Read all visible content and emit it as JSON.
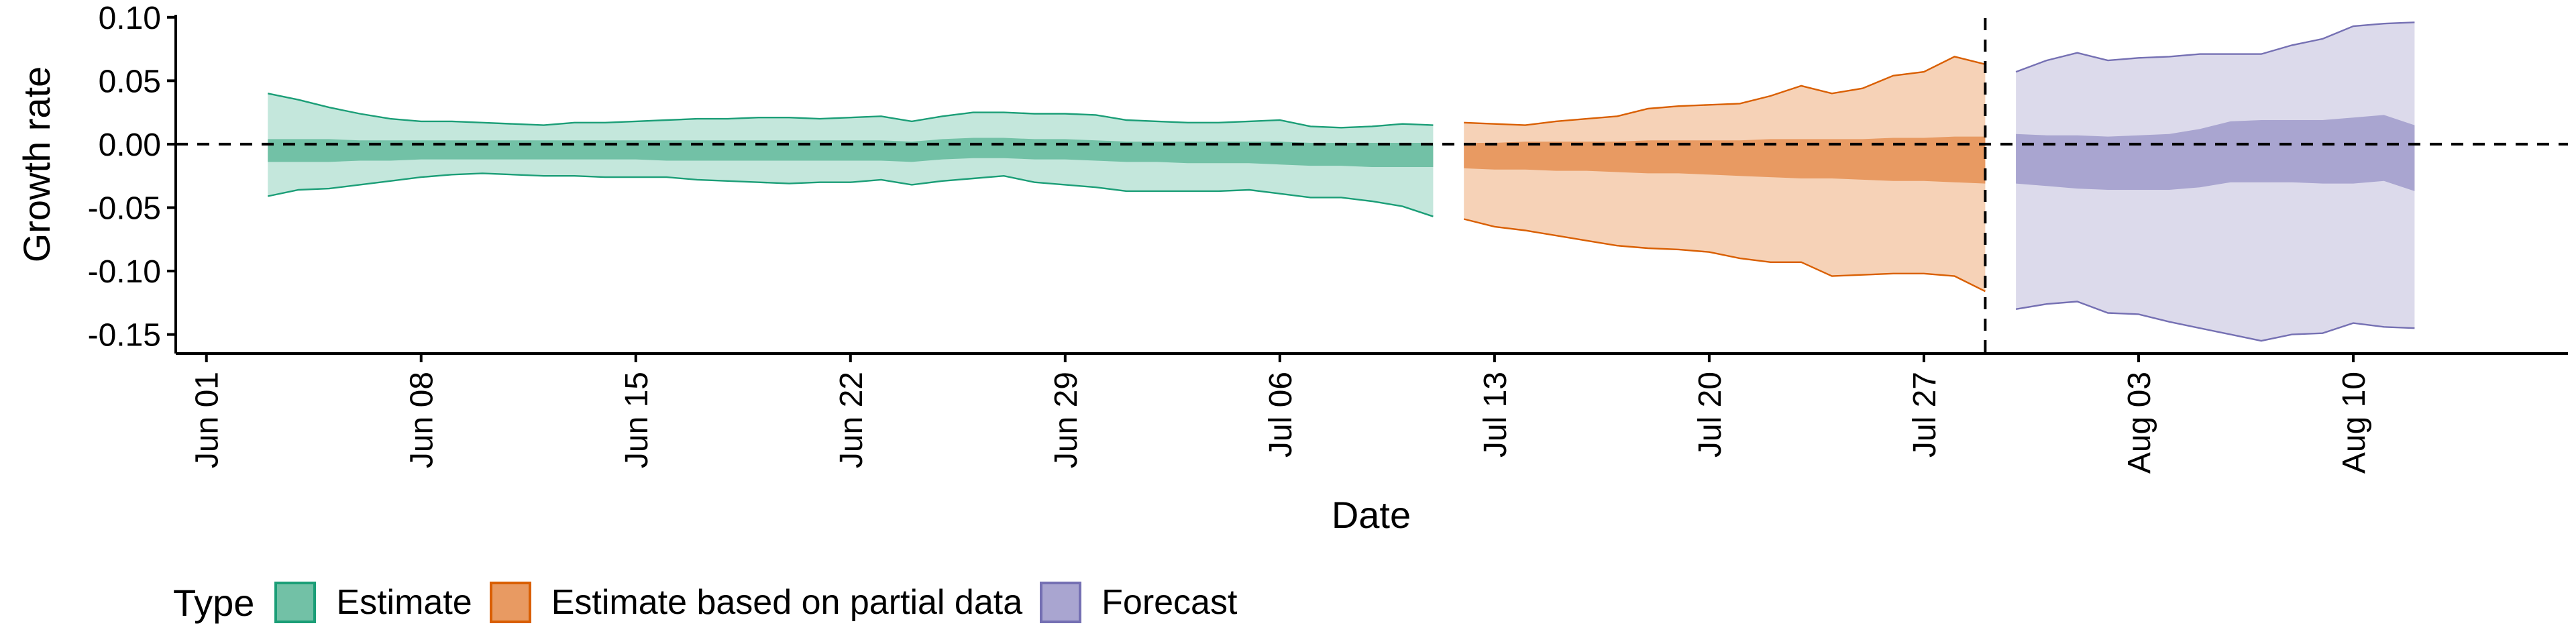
{
  "chart_data": {
    "type": "area",
    "title": "",
    "xlabel": "Date",
    "ylabel": "Growth rate",
    "x_tick_labels": [
      "Jun 01",
      "Jun 08",
      "Jun 15",
      "Jun 22",
      "Jun 29",
      "Jul 06",
      "Jul 13",
      "Jul 20",
      "Jul 27",
      "Aug 03",
      "Aug 10"
    ],
    "x_tick_dates": [
      "2020-06-01",
      "2020-06-08",
      "2020-06-15",
      "2020-06-22",
      "2020-06-29",
      "2020-07-06",
      "2020-07-13",
      "2020-07-20",
      "2020-07-27",
      "2020-08-03",
      "2020-08-10"
    ],
    "xlim": [
      "2020-05-31",
      "2020-08-17"
    ],
    "ylim": [
      -0.165,
      0.102
    ],
    "y_ticks": [
      0.1,
      0.05,
      0.0,
      -0.05,
      -0.1,
      -0.15
    ],
    "y_tick_labels": [
      "0.10",
      "0.05",
      "0.00",
      "-0.05",
      "-0.10",
      "-0.15"
    ],
    "reference_lines": {
      "horizontal_y": 0.0,
      "vertical_date": "2020-07-29"
    },
    "grid": false,
    "legend": {
      "title": "Type",
      "position": "bottom",
      "entries": [
        "Estimate",
        "Estimate based on partial data",
        "Forecast"
      ]
    },
    "series": [
      {
        "name": "Estimate",
        "color_outer": "#c4e7dc",
        "color_inner": "#72c1a6",
        "color_line": "#1b9e77",
        "dates": [
          "2020-06-03",
          "2020-06-04",
          "2020-06-05",
          "2020-06-06",
          "2020-06-07",
          "2020-06-08",
          "2020-06-09",
          "2020-06-10",
          "2020-06-11",
          "2020-06-12",
          "2020-06-13",
          "2020-06-14",
          "2020-06-15",
          "2020-06-16",
          "2020-06-17",
          "2020-06-18",
          "2020-06-19",
          "2020-06-20",
          "2020-06-21",
          "2020-06-22",
          "2020-06-23",
          "2020-06-24",
          "2020-06-25",
          "2020-06-26",
          "2020-06-27",
          "2020-06-28",
          "2020-06-29",
          "2020-06-30",
          "2020-07-01",
          "2020-07-02",
          "2020-07-03",
          "2020-07-04",
          "2020-07-05",
          "2020-07-06",
          "2020-07-07",
          "2020-07-08",
          "2020-07-09",
          "2020-07-10",
          "2020-07-11"
        ],
        "upper90": [
          0.04,
          0.035,
          0.029,
          0.024,
          0.02,
          0.018,
          0.018,
          0.017,
          0.016,
          0.015,
          0.017,
          0.017,
          0.018,
          0.019,
          0.02,
          0.02,
          0.021,
          0.021,
          0.02,
          0.021,
          0.022,
          0.018,
          0.022,
          0.025,
          0.025,
          0.024,
          0.024,
          0.023,
          0.019,
          0.018,
          0.017,
          0.017,
          0.018,
          0.019,
          0.014,
          0.013,
          0.014,
          0.016,
          0.015
        ],
        "lower90": [
          -0.041,
          -0.036,
          -0.035,
          -0.032,
          -0.029,
          -0.026,
          -0.024,
          -0.023,
          -0.024,
          -0.025,
          -0.025,
          -0.026,
          -0.026,
          -0.026,
          -0.028,
          -0.029,
          -0.03,
          -0.031,
          -0.03,
          -0.03,
          -0.028,
          -0.032,
          -0.029,
          -0.027,
          -0.025,
          -0.03,
          -0.032,
          -0.034,
          -0.037,
          -0.037,
          -0.037,
          -0.037,
          -0.036,
          -0.039,
          -0.042,
          -0.042,
          -0.045,
          -0.049,
          -0.057
        ],
        "upper50": [
          0.004,
          0.004,
          0.004,
          0.003,
          0.003,
          0.003,
          0.003,
          0.003,
          0.003,
          0.003,
          0.003,
          0.003,
          0.003,
          0.003,
          0.003,
          0.003,
          0.003,
          0.003,
          0.003,
          0.003,
          0.003,
          0.002,
          0.004,
          0.005,
          0.005,
          0.004,
          0.004,
          0.003,
          0.002,
          0.002,
          0.002,
          0.002,
          0.002,
          0.002,
          0.001,
          0.001,
          0.001,
          0.001,
          0.001
        ],
        "lower50": [
          -0.014,
          -0.014,
          -0.014,
          -0.013,
          -0.013,
          -0.012,
          -0.012,
          -0.012,
          -0.012,
          -0.012,
          -0.012,
          -0.012,
          -0.012,
          -0.013,
          -0.013,
          -0.013,
          -0.013,
          -0.013,
          -0.013,
          -0.013,
          -0.013,
          -0.014,
          -0.012,
          -0.011,
          -0.011,
          -0.012,
          -0.012,
          -0.013,
          -0.014,
          -0.014,
          -0.015,
          -0.015,
          -0.015,
          -0.016,
          -0.017,
          -0.017,
          -0.018,
          -0.018,
          -0.018
        ]
      },
      {
        "name": "Estimate based on partial data",
        "color_outer": "#f6d2b7",
        "color_inner": "#e89a62",
        "color_line": "#d95f02",
        "dates": [
          "2020-07-12",
          "2020-07-13",
          "2020-07-14",
          "2020-07-15",
          "2020-07-16",
          "2020-07-17",
          "2020-07-18",
          "2020-07-19",
          "2020-07-20",
          "2020-07-21",
          "2020-07-22",
          "2020-07-23",
          "2020-07-24",
          "2020-07-25",
          "2020-07-26",
          "2020-07-27",
          "2020-07-28",
          "2020-07-29"
        ],
        "upper90": [
          0.017,
          0.016,
          0.015,
          0.018,
          0.02,
          0.022,
          0.028,
          0.03,
          0.031,
          0.032,
          0.038,
          0.046,
          0.04,
          0.044,
          0.054,
          0.057,
          0.069,
          0.063
        ],
        "lower90": [
          -0.059,
          -0.065,
          -0.068,
          -0.072,
          -0.076,
          -0.08,
          -0.082,
          -0.083,
          -0.085,
          -0.09,
          -0.093,
          -0.093,
          -0.104,
          -0.103,
          -0.102,
          -0.102,
          -0.104,
          -0.116
        ],
        "upper50": [
          0.001,
          0.001,
          0.002,
          0.002,
          0.002,
          0.002,
          0.003,
          0.003,
          0.003,
          0.003,
          0.004,
          0.004,
          0.004,
          0.004,
          0.005,
          0.005,
          0.006,
          0.006
        ],
        "lower50": [
          -0.019,
          -0.02,
          -0.02,
          -0.021,
          -0.021,
          -0.022,
          -0.023,
          -0.023,
          -0.024,
          -0.025,
          -0.026,
          -0.027,
          -0.027,
          -0.028,
          -0.029,
          -0.029,
          -0.03,
          -0.031
        ]
      },
      {
        "name": "Forecast",
        "color_outer": "#dcdaeb",
        "color_inner": "#a9a5d0",
        "color_line": "#7570b3",
        "dates": [
          "2020-07-30",
          "2020-07-31",
          "2020-08-01",
          "2020-08-02",
          "2020-08-03",
          "2020-08-04",
          "2020-08-05",
          "2020-08-06",
          "2020-08-07",
          "2020-08-08",
          "2020-08-09",
          "2020-08-10",
          "2020-08-11",
          "2020-08-12"
        ],
        "upper90": [
          0.057,
          0.066,
          0.072,
          0.066,
          0.068,
          0.069,
          0.071,
          0.071,
          0.071,
          0.078,
          0.083,
          0.093,
          0.095,
          0.096
        ],
        "lower90": [
          -0.13,
          -0.126,
          -0.124,
          -0.133,
          -0.134,
          -0.14,
          -0.145,
          -0.15,
          -0.155,
          -0.15,
          -0.149,
          -0.141,
          -0.144,
          -0.145
        ],
        "upper50": [
          0.008,
          0.007,
          0.007,
          0.006,
          0.007,
          0.008,
          0.012,
          0.018,
          0.019,
          0.019,
          0.019,
          0.021,
          0.023,
          0.015
        ],
        "lower50": [
          -0.031,
          -0.033,
          -0.035,
          -0.036,
          -0.036,
          -0.036,
          -0.034,
          -0.03,
          -0.03,
          -0.03,
          -0.031,
          -0.031,
          -0.029,
          -0.037
        ]
      }
    ]
  }
}
